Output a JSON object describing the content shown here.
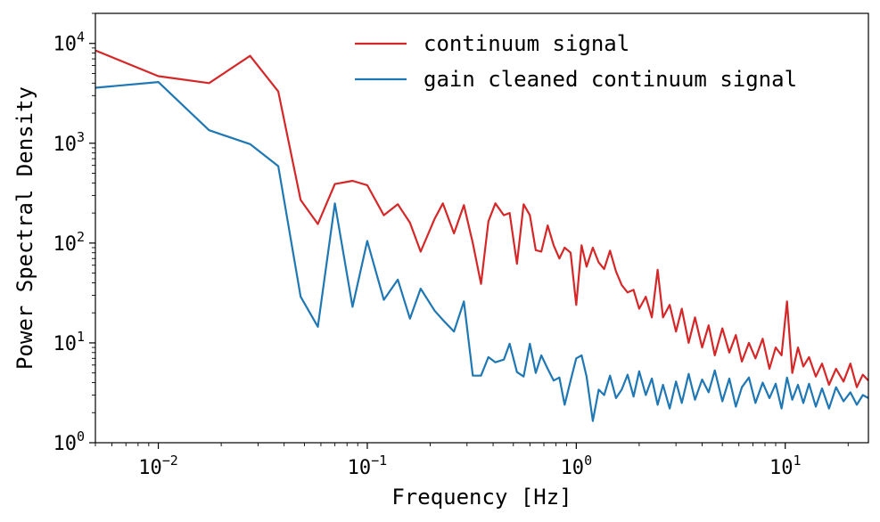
{
  "chart_data": {
    "type": "line",
    "title": "",
    "xlabel": "Frequency [Hz]",
    "ylabel": "Power Spectral Density",
    "xscale": "log",
    "yscale": "log",
    "xlim": [
      0.005,
      25
    ],
    "ylim": [
      1,
      20000
    ],
    "grid": false,
    "legend_position": "top-right",
    "xticks": [
      {
        "base": "10",
        "exp": "−2",
        "value": 0.01
      },
      {
        "base": "10",
        "exp": "−1",
        "value": 0.1
      },
      {
        "base": "10",
        "exp": "0",
        "value": 1
      },
      {
        "base": "10",
        "exp": "1",
        "value": 10
      }
    ],
    "yticks": [
      {
        "base": "10",
        "exp": "0",
        "value": 1
      },
      {
        "base": "10",
        "exp": "1",
        "value": 10
      },
      {
        "base": "10",
        "exp": "2",
        "value": 100
      },
      {
        "base": "10",
        "exp": "3",
        "value": 1000
      },
      {
        "base": "10",
        "exp": "4",
        "value": 10000
      }
    ],
    "series": [
      {
        "name": "continuum signal",
        "color": "#d62728",
        "x": [
          0.005,
          0.01,
          0.0175,
          0.0275,
          0.0375,
          0.048,
          0.058,
          0.07,
          0.085,
          0.1,
          0.12,
          0.14,
          0.16,
          0.18,
          0.21,
          0.23,
          0.26,
          0.29,
          0.32,
          0.35,
          0.38,
          0.41,
          0.45,
          0.48,
          0.52,
          0.56,
          0.6,
          0.64,
          0.68,
          0.73,
          0.78,
          0.83,
          0.88,
          0.94,
          1.0,
          1.06,
          1.12,
          1.2,
          1.28,
          1.36,
          1.45,
          1.55,
          1.65,
          1.76,
          1.88,
          2.0,
          2.15,
          2.3,
          2.45,
          2.6,
          2.8,
          3.0,
          3.2,
          3.45,
          3.7,
          4.0,
          4.3,
          4.6,
          5.0,
          5.4,
          5.8,
          6.2,
          6.7,
          7.2,
          7.8,
          8.4,
          9.0,
          9.6,
          10.2,
          10.8,
          11.5,
          12.2,
          13.0,
          14.0,
          15.0,
          16.2,
          17.5,
          19.0,
          20.5,
          22.0,
          23.5,
          25.0
        ],
        "y": [
          8500,
          4700,
          4000,
          7500,
          3300,
          270,
          155,
          390,
          420,
          380,
          190,
          245,
          160,
          82,
          175,
          250,
          125,
          240,
          100,
          39,
          165,
          250,
          190,
          200,
          62,
          245,
          190,
          85,
          82,
          150,
          95,
          70,
          90,
          80,
          24,
          95,
          58,
          90,
          64,
          55,
          84,
          52,
          38,
          32,
          34,
          22,
          29,
          18,
          54,
          18,
          24,
          13,
          22,
          10,
          18,
          9,
          15,
          7.5,
          14,
          8,
          12,
          6.5,
          10,
          7,
          11,
          5.5,
          9,
          7.5,
          26,
          5,
          9,
          5.8,
          7.2,
          4.6,
          6.2,
          3.8,
          5.5,
          4.1,
          6.2,
          3.6,
          4.8,
          4.2
        ]
      },
      {
        "name": "gain cleaned continuum signal",
        "color": "#1f77b4",
        "x": [
          0.005,
          0.01,
          0.0175,
          0.0275,
          0.0375,
          0.048,
          0.058,
          0.07,
          0.085,
          0.1,
          0.12,
          0.14,
          0.16,
          0.18,
          0.21,
          0.23,
          0.26,
          0.29,
          0.32,
          0.35,
          0.38,
          0.41,
          0.45,
          0.48,
          0.52,
          0.56,
          0.6,
          0.64,
          0.68,
          0.73,
          0.78,
          0.83,
          0.88,
          0.94,
          1.0,
          1.06,
          1.12,
          1.2,
          1.28,
          1.36,
          1.45,
          1.55,
          1.65,
          1.76,
          1.88,
          2.0,
          2.15,
          2.3,
          2.45,
          2.6,
          2.8,
          3.0,
          3.2,
          3.45,
          3.7,
          4.0,
          4.3,
          4.6,
          5.0,
          5.4,
          5.8,
          6.2,
          6.7,
          7.2,
          7.8,
          8.4,
          9.0,
          9.6,
          10.2,
          10.8,
          11.5,
          12.2,
          13.0,
          14.0,
          15.0,
          16.2,
          17.5,
          19.0,
          20.5,
          22.0,
          23.5,
          25.0
        ],
        "y": [
          3600,
          4100,
          1350,
          980,
          590,
          29,
          14.5,
          250,
          23,
          105,
          27,
          43,
          17.5,
          35,
          21,
          17,
          13,
          26,
          4.7,
          4.7,
          7.2,
          6.4,
          6.8,
          9.8,
          5.1,
          4.6,
          9.8,
          5,
          7.5,
          5.5,
          4.2,
          4.5,
          2.4,
          4.2,
          7,
          7.5,
          4.6,
          1.65,
          3.4,
          3.0,
          4.7,
          2.8,
          3.4,
          4.8,
          2.9,
          5.2,
          3.0,
          4.4,
          2.4,
          3.8,
          2.2,
          4.1,
          2.5,
          4.9,
          2.7,
          4.3,
          3.2,
          5.3,
          2.6,
          4.4,
          2.3,
          3.6,
          4.5,
          2.5,
          4.0,
          2.8,
          3.9,
          2.2,
          4.5,
          2.7,
          3.8,
          2.5,
          3.9,
          2.3,
          3.5,
          2.2,
          3.6,
          2.6,
          3.2,
          2.4,
          3.0,
          2.8
        ]
      }
    ]
  }
}
